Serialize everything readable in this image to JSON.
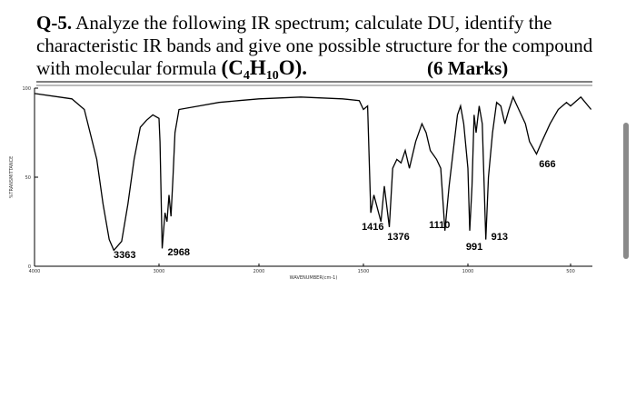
{
  "question": {
    "number": "Q-5.",
    "lines": [
      "Analyze the following IR spectrum; calculate DU, identify the",
      "characteristic IR bands and give one  possible structure for the compound",
      "with molecular formula"
    ],
    "formula": [
      "(C",
      "4",
      "H",
      "10",
      "O)."
    ],
    "marks": "(6 Marks)"
  },
  "chart_data": {
    "type": "line",
    "xlabel": "WAVENUMBER(cm-1)",
    "ylabel": "%TRANSMITTANCE",
    "color": "#000000",
    "xlim": [
      4000,
      400
    ],
    "xticks": [
      4000,
      3000,
      2000,
      1500,
      1000,
      500
    ],
    "ylim": [
      0,
      100
    ],
    "yticks": [
      100,
      50,
      0
    ],
    "x": [
      4000,
      3800,
      3700,
      3600,
      3500,
      3450,
      3400,
      3363,
      3300,
      3250,
      3200,
      3150,
      3100,
      3050,
      3000,
      2990,
      2968,
      2940,
      2920,
      2900,
      2880,
      2860,
      2840,
      2800,
      2600,
      2400,
      2200,
      2000,
      1800,
      1600,
      1520,
      1500,
      1480,
      1465,
      1450,
      1416,
      1400,
      1376,
      1360,
      1340,
      1320,
      1300,
      1280,
      1250,
      1220,
      1200,
      1180,
      1150,
      1130,
      1110,
      1090,
      1070,
      1050,
      1035,
      1020,
      1000,
      991,
      980,
      970,
      960,
      945,
      930,
      913,
      900,
      880,
      860,
      840,
      820,
      800,
      780,
      760,
      720,
      700,
      666,
      640,
      600,
      560,
      520,
      500,
      450,
      400
    ],
    "values": [
      97,
      95,
      94,
      88,
      60,
      35,
      15,
      9,
      14,
      35,
      60,
      78,
      82,
      85,
      83,
      70,
      10,
      30,
      25,
      40,
      28,
      50,
      75,
      88,
      90,
      92,
      93,
      94,
      95,
      94,
      93,
      88,
      90,
      30,
      40,
      25,
      45,
      22,
      55,
      60,
      58,
      65,
      55,
      70,
      80,
      75,
      65,
      60,
      55,
      20,
      45,
      65,
      85,
      90,
      80,
      55,
      20,
      45,
      85,
      75,
      90,
      80,
      15,
      50,
      75,
      92,
      90,
      80,
      88,
      95,
      90,
      80,
      70,
      63,
      70,
      80,
      88,
      92,
      90,
      95,
      88
    ],
    "peak_labels": [
      3363,
      2968,
      1416,
      1376,
      1110,
      991,
      913,
      666
    ]
  }
}
